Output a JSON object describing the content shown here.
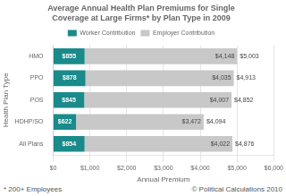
{
  "chart_data": {
    "type": "bar",
    "orientation": "horizontal",
    "stacked": true,
    "title": [
      "Average Annual Health Plan Premiums for Single",
      "Coverage at Large Firms* by Plan Type in 2009"
    ],
    "categories": [
      "HMO",
      "PPO",
      "POS",
      "HDHP/SO",
      "All Plans"
    ],
    "series": [
      {
        "name": "Worker Contribution",
        "color": "#1a8a8a",
        "values": [
          855,
          878,
          845,
          622,
          854
        ],
        "value_labels": [
          "$855",
          "$878",
          "$845",
          "$622",
          "$854"
        ]
      },
      {
        "name": "Employer Contribution",
        "color": "#c8c8c8",
        "values": [
          4148,
          4035,
          4007,
          3472,
          4022
        ],
        "value_labels": [
          "$4,148",
          "$4,035",
          "$4,007",
          "$3,472",
          "$4,022"
        ]
      }
    ],
    "totals": [
      5003,
      4913,
      4852,
      4094,
      4876
    ],
    "total_labels": [
      "$5,003",
      "$4,913",
      "$4,852",
      "$4,094",
      "$4,876"
    ],
    "xlabel": "Annual Premium",
    "ylabel": "Health Plan Type",
    "xlim": [
      0,
      6000
    ],
    "xticks": [
      {
        "value": 0,
        "label": "$0"
      },
      {
        "value": 1000,
        "label": "$1,000"
      },
      {
        "value": 2000,
        "label": "$2,000"
      },
      {
        "value": 3000,
        "label": "$3,000"
      },
      {
        "value": 4000,
        "label": "$4,000"
      },
      {
        "value": 5000,
        "label": "$5,000"
      },
      {
        "value": 6000,
        "label": "$6,000"
      }
    ],
    "grid": "x",
    "legend": "top",
    "data_labels": true,
    "footnote": "* 200+ Employees",
    "copyright": "© Political Calculations 2010"
  }
}
